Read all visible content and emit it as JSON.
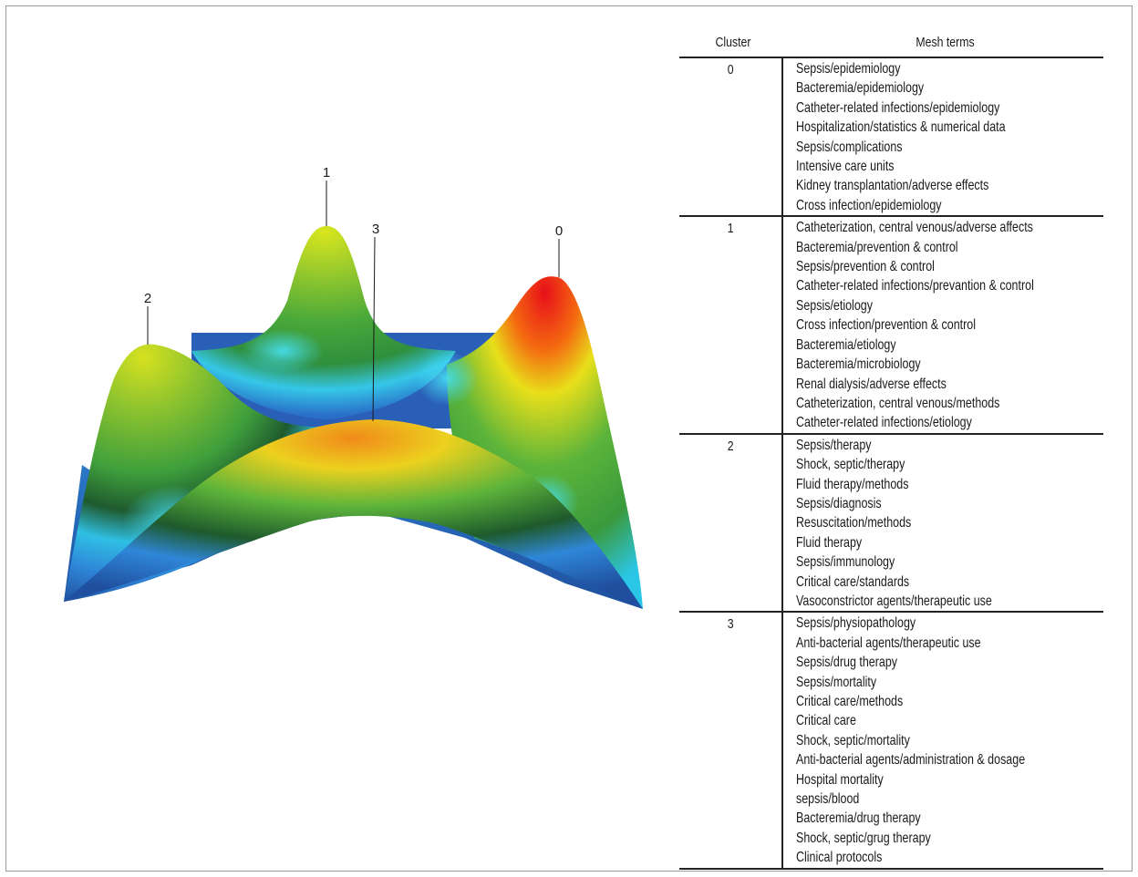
{
  "peaks": [
    "0",
    "1",
    "2",
    "3"
  ],
  "table": {
    "col_cluster": "Cluster",
    "col_terms": "Mesh terms",
    "clusters": [
      {
        "id": "0",
        "terms": [
          "Sepsis/epidemiology",
          "Bacteremia/epidemiology",
          "Catheter-related infections/epidemiology",
          "Hospitalization/statistics & numerical data",
          "Sepsis/complications",
          "Intensive care units",
          "Kidney transplantation/adverse effects",
          "Cross infection/epidemiology"
        ]
      },
      {
        "id": "1",
        "terms": [
          "Catheterization, central venous/adverse affects",
          "Bacteremia/prevention & control",
          "Sepsis/prevention & control",
          "Catheter-related infections/prevantion & control",
          "Sepsis/etiology",
          "Cross infection/prevention & control",
          "Bacteremia/etiology",
          "Bacteremia/microbiology",
          "Renal dialysis/adverse effects",
          "Catheterization, central venous/methods",
          "Catheter-related infections/etiology"
        ]
      },
      {
        "id": "2",
        "terms": [
          "Sepsis/therapy",
          "Shock, septic/therapy",
          "Fluid therapy/methods",
          "Sepsis/diagnosis",
          "Resuscitation/methods",
          "Fluid therapy",
          "Sepsis/immunology",
          "Critical care/standards",
          "Vasoconstrictor agents/therapeutic use"
        ]
      },
      {
        "id": "3",
        "terms": [
          "Sepsis/physiopathology",
          "Anti-bacterial agents/therapeutic use",
          "Sepsis/drug therapy",
          "Sepsis/mortality",
          "Critical care/methods",
          "Critical care",
          "Shock, septic/mortality",
          "Anti-bacterial agents/administration & dosage",
          "Hospital mortality",
          "sepsis/blood",
          "Bacteremia/drug therapy",
          "Shock, septic/grug therapy",
          "Clinical protocols"
        ]
      }
    ]
  }
}
